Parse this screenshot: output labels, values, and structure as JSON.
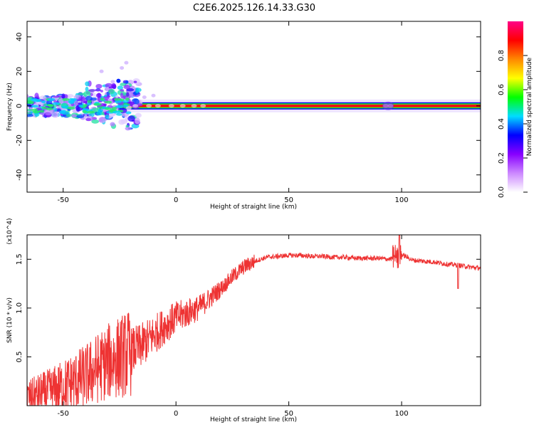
{
  "title": "C2E6.2025.126.14.33.G30",
  "chart_data": [
    {
      "type": "heatmap",
      "xlabel": "Height of straight line (km)",
      "ylabel": "Frequency (Hz)",
      "xlim": [
        -66,
        135
      ],
      "ylim": [
        -50,
        49
      ],
      "xticks": [
        -50,
        0,
        50,
        100
      ],
      "yticks": [
        40,
        20,
        0,
        -20,
        -40
      ],
      "colorbar": {
        "label": "Normalized spectral amplitude",
        "range": [
          0.0,
          1.0
        ],
        "ticks": [
          "0.0",
          "0.2",
          "0.4",
          "0.6",
          "0.8"
        ],
        "colormap": [
          "#ffffff",
          "#cc88ff",
          "#8800ff",
          "#0000ff",
          "#00ddff",
          "#00ff00",
          "#ffff00",
          "#ff8800",
          "#ff0000",
          "#ff0088"
        ]
      },
      "features": {
        "tone_frequency_hz": 0,
        "tone_extent_km": [
          -25,
          135
        ],
        "scatter_extent_km": [
          -66,
          -20
        ],
        "scatter_freq_range_hz": [
          -10,
          25
        ]
      }
    },
    {
      "type": "line",
      "xlabel": "Height of straight line (km)",
      "ylabel": "SNR (10 * v/v)",
      "scale_label": "(x10^4)",
      "xlim": [
        -66,
        135
      ],
      "ylim": [
        0,
        1.75
      ],
      "xticks": [
        -50,
        0,
        50,
        100
      ],
      "yticks": [
        0.5,
        1.0,
        1.5
      ],
      "ytick_labels": [
        "0.5",
        "1.0",
        "1.5"
      ],
      "color": "#ee3333",
      "series": [
        {
          "x": [
            -66,
            -60,
            -55,
            -50,
            -45,
            -40,
            -35,
            -30,
            -25,
            -20,
            -15,
            -10,
            -5,
            0,
            5,
            10,
            15,
            20,
            25,
            30,
            35,
            40,
            45,
            50,
            55,
            60,
            65,
            70,
            75,
            80,
            85,
            90,
            95,
            100,
            105,
            110,
            115,
            120,
            125,
            130,
            135
          ],
          "y": [
            0.08,
            0.12,
            0.15,
            0.2,
            0.25,
            0.3,
            0.38,
            0.45,
            0.5,
            0.55,
            0.62,
            0.72,
            0.82,
            0.9,
            0.95,
            1.0,
            1.1,
            1.2,
            1.32,
            1.42,
            1.48,
            1.52,
            1.53,
            1.54,
            1.54,
            1.53,
            1.53,
            1.52,
            1.52,
            1.51,
            1.51,
            1.51,
            1.5,
            1.55,
            1.49,
            1.48,
            1.47,
            1.45,
            1.44,
            1.42,
            1.41
          ]
        }
      ]
    }
  ]
}
